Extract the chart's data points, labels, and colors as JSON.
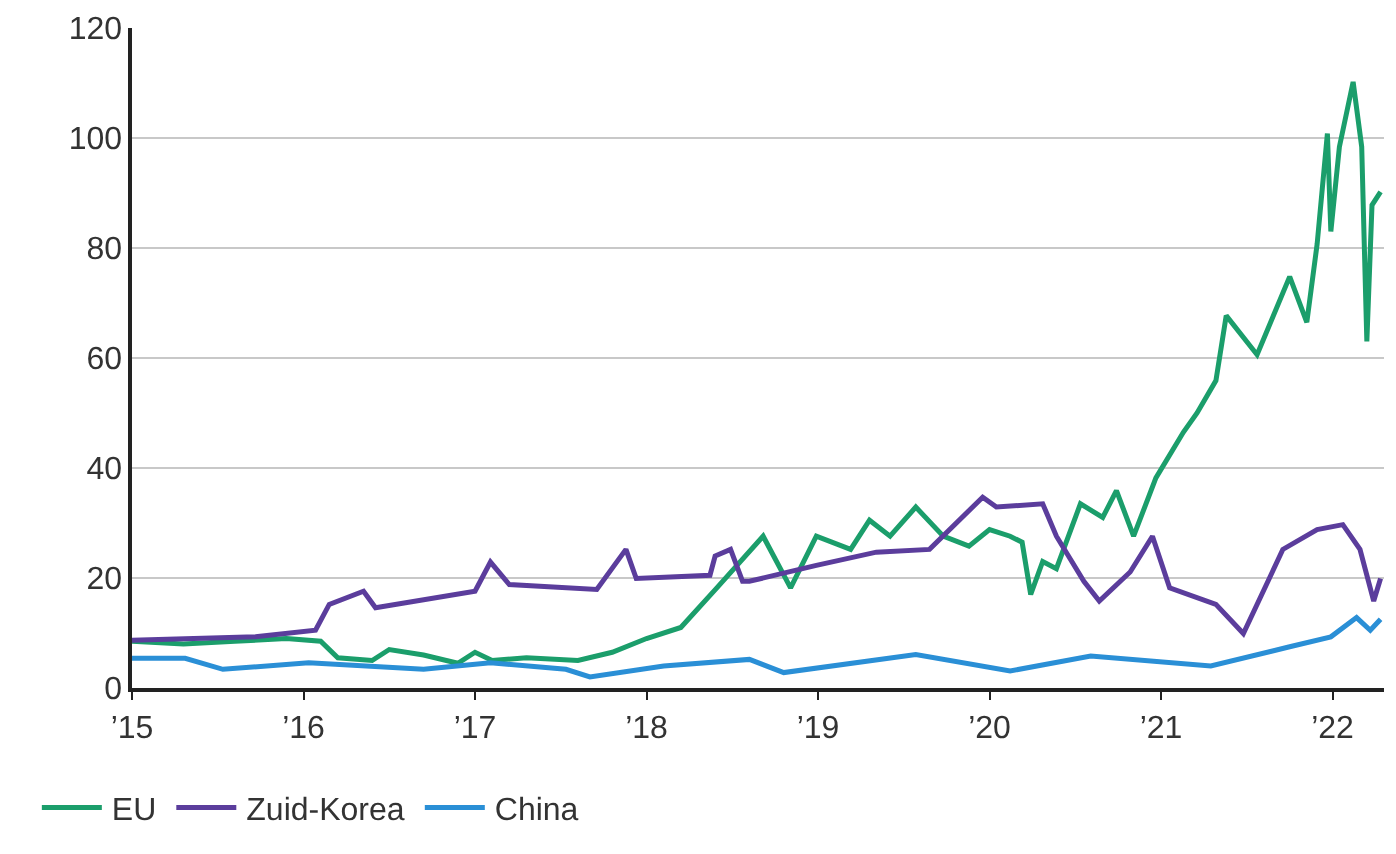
{
  "chart_data": {
    "type": "line",
    "xlim": [
      2015,
      2022.3
    ],
    "ylim": [
      0,
      120
    ],
    "xticks": [
      {
        "value": 2015,
        "label": "’15"
      },
      {
        "value": 2016,
        "label": "’16"
      },
      {
        "value": 2017,
        "label": "’17"
      },
      {
        "value": 2018,
        "label": "’18"
      },
      {
        "value": 2019,
        "label": "’19"
      },
      {
        "value": 2020,
        "label": "’20"
      },
      {
        "value": 2021,
        "label": "’21"
      },
      {
        "value": 2022,
        "label": "’22"
      }
    ],
    "yticks": [
      0,
      20,
      40,
      60,
      80,
      100,
      120
    ],
    "grid": "y",
    "legend": "bottom",
    "marker": "none",
    "line_style": "solid",
    "series": [
      {
        "name": "EU",
        "color": "#1b9e6b",
        "x": [
          2015,
          2015.3,
          2015.6,
          2015.9,
          2016.1,
          2016.2,
          2016.4,
          2016.5,
          2016.7,
          2016.9,
          2017,
          2017.1,
          2017.3,
          2017.6,
          2017.8,
          2018,
          2018.2,
          2018.41,
          2018.68,
          2018.84,
          2018.99,
          2019.19,
          2019.3,
          2019.42,
          2019.57,
          2019.73,
          2019.88,
          2020,
          2020.12,
          2020.19,
          2020.24,
          2020.31,
          2020.39,
          2020.53,
          2020.66,
          2020.74,
          2020.84,
          2020.97,
          2021.13,
          2021.21,
          2021.32,
          2021.38,
          2021.56,
          2021.75,
          2021.85,
          2021.91,
          2021.97,
          2021.99,
          2022.04,
          2022.12,
          2022.17,
          2022.2,
          2022.23,
          2022.28
        ],
        "values": [
          8.5,
          8,
          8.5,
          9,
          8.5,
          5.5,
          5,
          7,
          6,
          4.5,
          6.5,
          5,
          5.5,
          5,
          6.5,
          9,
          11,
          18.2,
          27.6,
          18.2,
          27.6,
          25.2,
          30.5,
          27.6,
          32.9,
          27.6,
          25.8,
          28.8,
          27.6,
          26.5,
          17,
          23,
          21.7,
          33.5,
          31,
          35.9,
          27.6,
          38.2,
          46.5,
          50,
          55.9,
          67.7,
          60.6,
          74.8,
          66.5,
          80.7,
          100.8,
          83,
          98.4,
          110.2,
          98.4,
          63,
          87.8,
          90.2
        ]
      },
      {
        "name": "Zuid-Korea",
        "color": "#5b3d9c",
        "x": [
          2015,
          2015.72,
          2016.07,
          2016.15,
          2016.35,
          2016.42,
          2017,
          2017.09,
          2017.2,
          2017.71,
          2017.88,
          2017.94,
          2018.37,
          2018.4,
          2018.49,
          2018.56,
          2018.6,
          2018.99,
          2019.34,
          2019.65,
          2019.96,
          2020.04,
          2020.31,
          2020.39,
          2020.55,
          2020.64,
          2020.82,
          2020.95,
          2021.05,
          2021.32,
          2021.48,
          2021.64,
          2021.71,
          2021.91,
          2022.06,
          2022.16,
          2022.24,
          2022.28
        ],
        "values": [
          8.7,
          9.3,
          10.5,
          15.2,
          17.6,
          14.6,
          17.6,
          22.9,
          18.8,
          17.9,
          25.2,
          19.9,
          20.5,
          24,
          25.2,
          19.4,
          19.4,
          22.3,
          24.7,
          25.2,
          34.7,
          32.9,
          33.5,
          27.6,
          19.4,
          15.8,
          21.1,
          27.6,
          18.2,
          15.2,
          9.9,
          20.5,
          25.2,
          28.8,
          29.7,
          25.2,
          15.8,
          19.9
        ]
      },
      {
        "name": "China",
        "color": "#2a8fd6",
        "x": [
          2015,
          2015.31,
          2015.53,
          2016.03,
          2016.7,
          2017.09,
          2017.53,
          2017.67,
          2018.1,
          2018.6,
          2018.8,
          2019.57,
          2020.12,
          2020.59,
          2021.29,
          2021.75,
          2021.99,
          2022.14,
          2022.22,
          2022.28
        ],
        "values": [
          5.4,
          5.4,
          3.4,
          4.6,
          3.4,
          4.6,
          3.4,
          2,
          4,
          5.2,
          2.8,
          6.1,
          3.1,
          5.8,
          4,
          7.5,
          9.3,
          12.8,
          10.5,
          12.5
        ]
      }
    ]
  }
}
